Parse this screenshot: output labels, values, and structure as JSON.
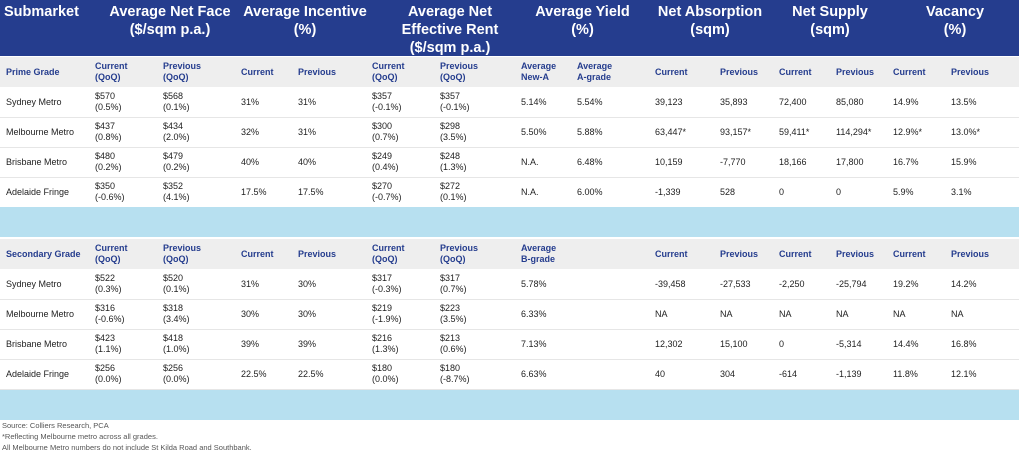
{
  "headers": {
    "submarket": "Submarket",
    "net_face": [
      "Average Net Face",
      "($/sqm p.a.)"
    ],
    "incentive": [
      "Average Incentive",
      "(%)"
    ],
    "effective": [
      "Average Net",
      "Effective Rent",
      "($/sqm p.a.)"
    ],
    "yield": [
      "Average Yield",
      "(%)"
    ],
    "absorption": [
      "Net Absorption",
      "(sqm)"
    ],
    "supply": [
      "Net Supply",
      "(sqm)"
    ],
    "vacancy": [
      "Vacancy",
      "(%)"
    ]
  },
  "prime": {
    "label": "Prime Grade",
    "subheaders": [
      [
        "Current",
        "(QoQ)"
      ],
      [
        "Previous",
        "(QoQ)"
      ],
      [
        "Current"
      ],
      [
        "Previous"
      ],
      [
        "Current",
        "(QoQ)"
      ],
      [
        "Previous",
        "(QoQ)"
      ],
      [
        "Average",
        "New-A"
      ],
      [
        "Average",
        "A-grade"
      ],
      [
        "Current"
      ],
      [
        "Previous"
      ],
      [
        "Current"
      ],
      [
        "Previous"
      ],
      [
        "Current"
      ],
      [
        "Previous"
      ]
    ],
    "rows": [
      {
        "name": "Sydney Metro",
        "cells": [
          [
            "$570",
            "(0.5%)"
          ],
          [
            "$568",
            "(0.1%)"
          ],
          [
            "31%"
          ],
          [
            "31%"
          ],
          [
            "$357",
            "(-0.1%)"
          ],
          [
            "$357",
            "(-0.1%)"
          ],
          [
            "5.14%"
          ],
          [
            "5.54%"
          ],
          [
            "39,123"
          ],
          [
            "35,893"
          ],
          [
            "72,400"
          ],
          [
            "85,080"
          ],
          [
            "14.9%"
          ],
          [
            "13.5%"
          ]
        ]
      },
      {
        "name": "Melbourne Metro",
        "cells": [
          [
            "$437",
            "(0.8%)"
          ],
          [
            "$434",
            "(2.0%)"
          ],
          [
            "32%"
          ],
          [
            "31%"
          ],
          [
            "$300",
            "(0.7%)"
          ],
          [
            "$298",
            "(3.5%)"
          ],
          [
            "5.50%"
          ],
          [
            "5.88%"
          ],
          [
            "63,447*"
          ],
          [
            "93,157*"
          ],
          [
            "59,411*"
          ],
          [
            "114,294*"
          ],
          [
            "12.9%*"
          ],
          [
            "13.0%*"
          ]
        ]
      },
      {
        "name": "Brisbane Metro",
        "cells": [
          [
            "$480",
            "(0.2%)"
          ],
          [
            "$479",
            "(0.2%)"
          ],
          [
            "40%"
          ],
          [
            "40%"
          ],
          [
            "$249",
            "(0.4%)"
          ],
          [
            "$248",
            "(1.3%)"
          ],
          [
            "N.A."
          ],
          [
            "6.48%"
          ],
          [
            "10,159"
          ],
          [
            "-7,770"
          ],
          [
            "18,166"
          ],
          [
            "17,800"
          ],
          [
            "16.7%"
          ],
          [
            "15.9%"
          ]
        ]
      },
      {
        "name": "Adelaide Fringe",
        "cells": [
          [
            "$350",
            "(-0.6%)"
          ],
          [
            "$352",
            "(4.1%)"
          ],
          [
            "17.5%"
          ],
          [
            "17.5%"
          ],
          [
            "$270",
            "(-0.7%)"
          ],
          [
            "$272",
            "(0.1%)"
          ],
          [
            "N.A."
          ],
          [
            "6.00%"
          ],
          [
            "-1,339"
          ],
          [
            "528"
          ],
          [
            "0"
          ],
          [
            "0"
          ],
          [
            "5.9%"
          ],
          [
            "3.1%"
          ]
        ]
      }
    ]
  },
  "secondary": {
    "label": "Secondary Grade",
    "subheaders": [
      [
        "Current",
        "(QoQ)"
      ],
      [
        "Previous",
        "(QoQ)"
      ],
      [
        "Current"
      ],
      [
        "Previous"
      ],
      [
        "Current",
        "(QoQ)"
      ],
      [
        "Previous",
        "(QoQ)"
      ],
      [
        "Average",
        "B-grade"
      ],
      [
        ""
      ],
      [
        "Current"
      ],
      [
        "Previous"
      ],
      [
        "Current"
      ],
      [
        "Previous"
      ],
      [
        "Current"
      ],
      [
        "Previous"
      ]
    ],
    "rows": [
      {
        "name": "Sydney Metro",
        "cells": [
          [
            "$522",
            "(0.3%)"
          ],
          [
            "$520",
            "(0.1%)"
          ],
          [
            "31%"
          ],
          [
            "30%"
          ],
          [
            "$317",
            "(-0.3%)"
          ],
          [
            "$317",
            "(0.7%)"
          ],
          [
            "5.78%"
          ],
          [
            ""
          ],
          [
            "-39,458"
          ],
          [
            "-27,533"
          ],
          [
            "-2,250"
          ],
          [
            "-25,794"
          ],
          [
            "19.2%"
          ],
          [
            "14.2%"
          ]
        ]
      },
      {
        "name": "Melbourne Metro",
        "cells": [
          [
            "$316",
            "(-0.6%)"
          ],
          [
            "$318",
            "(3.4%)"
          ],
          [
            "30%"
          ],
          [
            "30%"
          ],
          [
            "$219",
            "(-1.9%)"
          ],
          [
            "$223",
            "(3.5%)"
          ],
          [
            "6.33%"
          ],
          [
            ""
          ],
          [
            "NA"
          ],
          [
            "NA"
          ],
          [
            "NA"
          ],
          [
            "NA"
          ],
          [
            "NA"
          ],
          [
            "NA"
          ]
        ]
      },
      {
        "name": "Brisbane Metro",
        "cells": [
          [
            "$423",
            "(1.1%)"
          ],
          [
            "$418",
            "(1.0%)"
          ],
          [
            "39%"
          ],
          [
            "39%"
          ],
          [
            "$216",
            "(1.3%)"
          ],
          [
            "$213",
            "(0.6%)"
          ],
          [
            "7.13%"
          ],
          [
            ""
          ],
          [
            "12,302"
          ],
          [
            "15,100"
          ],
          [
            "0"
          ],
          [
            "-5,314"
          ],
          [
            "14.4%"
          ],
          [
            "16.8%"
          ]
        ]
      },
      {
        "name": "Adelaide Fringe",
        "cells": [
          [
            "$256",
            "(0.0%)"
          ],
          [
            "$256",
            "(0.0%)"
          ],
          [
            "22.5%"
          ],
          [
            "22.5%"
          ],
          [
            "$180",
            "(0.0%)"
          ],
          [
            "$180",
            "(-8.7%)"
          ],
          [
            "6.63%"
          ],
          [
            ""
          ],
          [
            "40"
          ],
          [
            "304"
          ],
          [
            "-614"
          ],
          [
            "-1,139"
          ],
          [
            "11.8%"
          ],
          [
            "12.1%"
          ]
        ]
      }
    ]
  },
  "footnotes": [
    "Source: Colliers Research, PCA",
    "*Reflecting Melbourne metro across all grades.",
    "All Melbourne Metro numbers do not include St Kilda Road and Southbank."
  ],
  "colors": {
    "header_bg": "#253d8e",
    "band_bg": "#b7e0f0",
    "subheader_bg": "#eeeeee"
  }
}
